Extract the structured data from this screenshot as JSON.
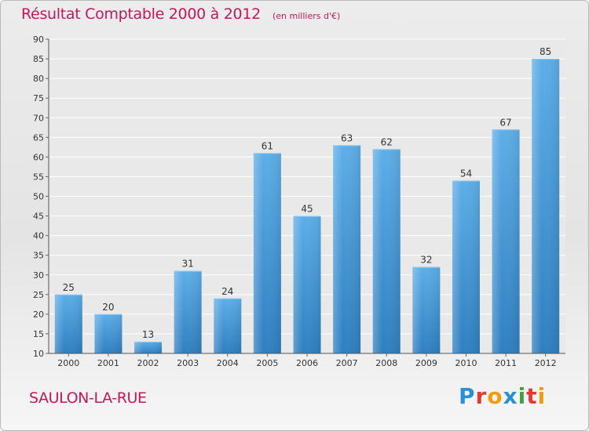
{
  "title": "Résultat Comptable 2000 à 2012",
  "subtitle": "(en milliers d'€)",
  "location": "SAULON-LA-RUE",
  "brand": {
    "text": "Proxiti",
    "colors": [
      "#2b8fd6",
      "#e53935",
      "#f39c12",
      "#2b8fd6",
      "#43a047",
      "#e53935",
      "#f39c12"
    ]
  },
  "chart_data": {
    "type": "bar",
    "categories": [
      "2000",
      "2001",
      "2002",
      "2003",
      "2004",
      "2005",
      "2006",
      "2007",
      "2008",
      "2009",
      "2010",
      "2011",
      "2012"
    ],
    "values": [
      25,
      20,
      13,
      31,
      24,
      61,
      45,
      63,
      62,
      32,
      54,
      67,
      85
    ],
    "ylim": [
      10,
      90
    ],
    "yticks": [
      10,
      15,
      20,
      25,
      30,
      35,
      40,
      45,
      50,
      55,
      60,
      65,
      70,
      75,
      80,
      85,
      90
    ],
    "grid": true,
    "bar_color": "#3a8fd5"
  }
}
